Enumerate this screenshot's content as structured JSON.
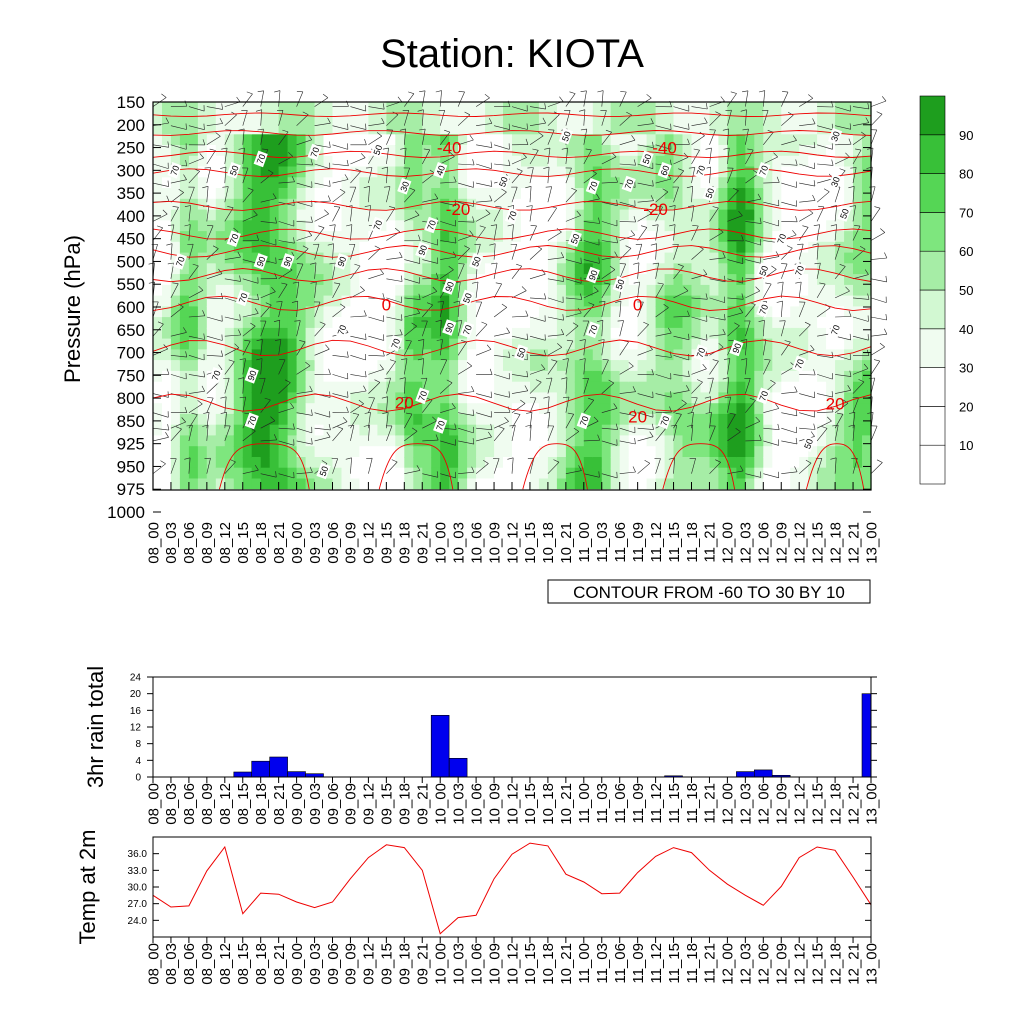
{
  "title": "Station: KIOTA",
  "time_labels": [
    "08_00",
    "08_03",
    "08_06",
    "08_09",
    "08_12",
    "08_15",
    "08_18",
    "08_21",
    "09_00",
    "09_03",
    "09_06",
    "09_09",
    "09_12",
    "09_15",
    "09_18",
    "09_21",
    "10_00",
    "10_03",
    "10_06",
    "10_09",
    "10_12",
    "10_15",
    "10_18",
    "10_21",
    "11_00",
    "11_03",
    "11_06",
    "11_09",
    "11_12",
    "11_15",
    "11_18",
    "11_21",
    "12_00",
    "12_03",
    "12_06",
    "12_09",
    "12_12",
    "12_15",
    "12_18",
    "12_21",
    "13_00"
  ],
  "chart_data": [
    {
      "type": "heatmap",
      "name": "humidity-wind-temperature-cross-section",
      "ylabel": "Pressure (hPa)",
      "y_tick_labels": [
        "150",
        "200",
        "250",
        "300",
        "350",
        "400",
        "450",
        "500",
        "550",
        "600",
        "650",
        "700",
        "750",
        "800",
        "850",
        "925",
        "950",
        "975",
        "1000"
      ],
      "y_direction": "top-to-bottom",
      "colorbar": {
        "labels": [
          "10",
          "20",
          "30",
          "40",
          "50",
          "60",
          "70",
          "80",
          "90"
        ],
        "colors": [
          "#ffffff",
          "#ffffff",
          "#ffffff",
          "#f0fcf0",
          "#d2f8d2",
          "#a6eda6",
          "#7ee67e",
          "#55d655",
          "#38c038",
          "#1e9e1e"
        ]
      },
      "contour_info": "CONTOUR FROM -60 TO 30 BY 10",
      "temperature_contour_labels": [
        {
          "t": 16.5,
          "p": 250,
          "label": "-40"
        },
        {
          "t": 28.5,
          "p": 250,
          "label": "-40"
        },
        {
          "t": 17.0,
          "p": 385,
          "label": "-20"
        },
        {
          "t": 28.0,
          "p": 385,
          "label": "-20"
        },
        {
          "t": 13.0,
          "p": 595,
          "label": "0"
        },
        {
          "t": 27.0,
          "p": 595,
          "label": "0"
        },
        {
          "t": 14.0,
          "p": 810,
          "label": "20"
        },
        {
          "t": 27.0,
          "p": 840,
          "label": "20"
        },
        {
          "t": 38.0,
          "p": 812,
          "label": "20"
        }
      ],
      "humidity_contour_labels": [
        {
          "t": 1.2,
          "p": 300,
          "label": "70"
        },
        {
          "t": 4.5,
          "p": 300,
          "label": "50"
        },
        {
          "t": 6.0,
          "p": 275,
          "label": "70"
        },
        {
          "t": 9.0,
          "p": 260,
          "label": "70"
        },
        {
          "t": 12.5,
          "p": 255,
          "label": "50"
        },
        {
          "t": 14.0,
          "p": 335,
          "label": "30"
        },
        {
          "t": 16.0,
          "p": 300,
          "label": "40"
        },
        {
          "t": 23.0,
          "p": 225,
          "label": "50"
        },
        {
          "t": 27.5,
          "p": 275,
          "label": "50"
        },
        {
          "t": 28.5,
          "p": 300,
          "label": "60"
        },
        {
          "t": 30.5,
          "p": 300,
          "label": "70"
        },
        {
          "t": 34.0,
          "p": 300,
          "label": "70"
        },
        {
          "t": 38.0,
          "p": 225,
          "label": "30"
        },
        {
          "t": 38.0,
          "p": 325,
          "label": "30"
        },
        {
          "t": 38.5,
          "p": 395,
          "label": "50"
        },
        {
          "t": 19.5,
          "p": 325,
          "label": "50"
        },
        {
          "t": 24.5,
          "p": 335,
          "label": "70"
        },
        {
          "t": 26.5,
          "p": 330,
          "label": "70"
        },
        {
          "t": 31.0,
          "p": 350,
          "label": "50"
        },
        {
          "t": 20.0,
          "p": 400,
          "label": "70"
        },
        {
          "t": 12.5,
          "p": 420,
          "label": "70"
        },
        {
          "t": 15.5,
          "p": 420,
          "label": "70"
        },
        {
          "t": 15.0,
          "p": 475,
          "label": "90"
        },
        {
          "t": 23.5,
          "p": 450,
          "label": "50"
        },
        {
          "t": 35.0,
          "p": 450,
          "label": "70"
        },
        {
          "t": 4.5,
          "p": 450,
          "label": "70"
        },
        {
          "t": 1.5,
          "p": 500,
          "label": "70"
        },
        {
          "t": 6.0,
          "p": 500,
          "label": "90"
        },
        {
          "t": 7.5,
          "p": 500,
          "label": "90"
        },
        {
          "t": 10.5,
          "p": 500,
          "label": "90"
        },
        {
          "t": 18.0,
          "p": 500,
          "label": "50"
        },
        {
          "t": 24.5,
          "p": 530,
          "label": "90"
        },
        {
          "t": 26.0,
          "p": 550,
          "label": "50"
        },
        {
          "t": 34.0,
          "p": 520,
          "label": "50"
        },
        {
          "t": 36.0,
          "p": 520,
          "label": "70"
        },
        {
          "t": 5.0,
          "p": 580,
          "label": "70"
        },
        {
          "t": 16.5,
          "p": 555,
          "label": "90"
        },
        {
          "t": 17.5,
          "p": 580,
          "label": "50"
        },
        {
          "t": 34.0,
          "p": 605,
          "label": "70"
        },
        {
          "t": 10.5,
          "p": 650,
          "label": "70"
        },
        {
          "t": 16.5,
          "p": 645,
          "label": "90"
        },
        {
          "t": 17.5,
          "p": 650,
          "label": "70"
        },
        {
          "t": 24.5,
          "p": 650,
          "label": "70"
        },
        {
          "t": 38.0,
          "p": 650,
          "label": "70"
        },
        {
          "t": 13.5,
          "p": 680,
          "label": "70"
        },
        {
          "t": 20.5,
          "p": 700,
          "label": "50"
        },
        {
          "t": 30.5,
          "p": 700,
          "label": "70"
        },
        {
          "t": 32.5,
          "p": 690,
          "label": "90"
        },
        {
          "t": 36.0,
          "p": 725,
          "label": "70"
        },
        {
          "t": 3.5,
          "p": 750,
          "label": "70"
        },
        {
          "t": 5.5,
          "p": 750,
          "label": "90"
        },
        {
          "t": 15.0,
          "p": 795,
          "label": "70"
        },
        {
          "t": 34.0,
          "p": 795,
          "label": "70"
        },
        {
          "t": 5.5,
          "p": 850,
          "label": "70"
        },
        {
          "t": 16.0,
          "p": 865,
          "label": "70"
        },
        {
          "t": 24.0,
          "p": 850,
          "label": "70"
        },
        {
          "t": 28.5,
          "p": 850,
          "label": "70"
        },
        {
          "t": 9.5,
          "p": 955,
          "label": "50"
        },
        {
          "t": 36.5,
          "p": 925,
          "label": "50"
        }
      ]
    },
    {
      "type": "bar",
      "name": "3hr-rain-total",
      "ylabel": "3hr rain total",
      "ylim": [
        0,
        24
      ],
      "y_ticks": [
        0,
        4,
        8,
        12,
        16,
        20,
        24
      ],
      "bar_color": "#0000ee",
      "values": [
        0,
        0,
        0,
        0,
        0,
        1.2,
        3.8,
        4.8,
        1.3,
        0.8,
        0,
        0,
        0,
        0,
        0,
        0,
        14.8,
        4.5,
        0,
        0,
        0,
        0,
        0,
        0,
        0,
        0,
        0,
        0,
        0,
        0.3,
        0,
        0,
        0,
        1.3,
        1.7,
        0.4,
        0,
        0,
        0,
        0,
        20
      ]
    },
    {
      "type": "line",
      "name": "temp-at-2m",
      "ylabel": "Temp at 2m",
      "ylim": [
        21.0,
        39.0
      ],
      "y_ticks": [
        "24.0",
        "27.0",
        "30.0",
        "33.0",
        "36.0"
      ],
      "line_color": "#ee0000",
      "values": [
        28.5,
        26.4,
        26.6,
        32.9,
        37.2,
        25.2,
        28.9,
        28.7,
        27.3,
        26.3,
        27.3,
        31.5,
        35.3,
        37.6,
        37.1,
        33.0,
        21.6,
        24.5,
        24.9,
        31.5,
        35.9,
        37.9,
        37.4,
        32.3,
        30.9,
        28.8,
        28.9,
        32.6,
        35.5,
        37.1,
        36.2,
        33.0,
        30.5,
        28.5,
        26.7,
        30.1,
        35.3,
        37.2,
        36.6,
        31.8,
        26.8
      ]
    }
  ]
}
